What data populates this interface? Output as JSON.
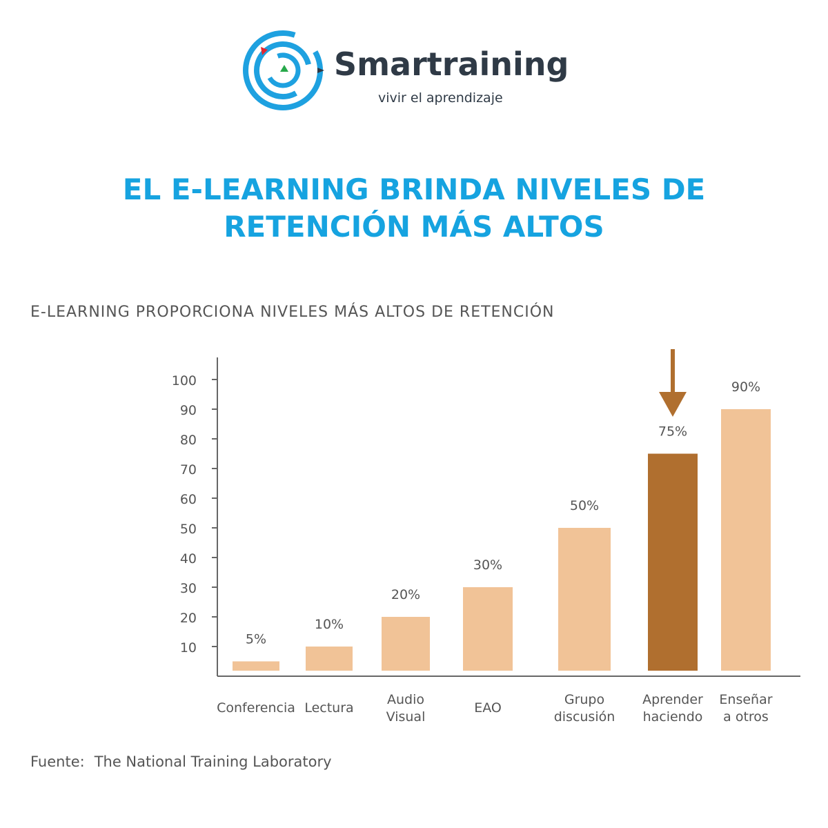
{
  "brand": {
    "name": "Smartraining",
    "tagline": "vivir el aprendizaje",
    "logo_icon": "target-maze-logo-icon",
    "colors": {
      "ring": "#1ea1e0",
      "red": "#e3262f",
      "green": "#27a84a",
      "text": "#2f3a46"
    }
  },
  "headline": {
    "line1": "EL E-LEARNING BRINDA NIVELES DE",
    "line2": "RETENCIÓN MÁS ALTOS",
    "color": "#16a3e0"
  },
  "source": {
    "label": "Fuente:",
    "text": "The National Training Laboratory"
  },
  "chart_data": {
    "type": "bar",
    "title": "E-LEARNING PROPORCIONA NIVELES MÁS ALTOS DE RETENCIÓN",
    "xlabel": "",
    "ylabel": "",
    "ylim": [
      0,
      100
    ],
    "yticks": [
      10,
      20,
      30,
      40,
      50,
      60,
      70,
      80,
      90,
      100
    ],
    "grid": false,
    "categories": [
      [
        "Conferencia"
      ],
      [
        "Lectura"
      ],
      [
        "Audio",
        "Visual"
      ],
      [
        "EAO"
      ],
      [
        "Grupo",
        "discusión"
      ],
      [
        "Aprender",
        "haciendo"
      ],
      [
        "Enseñar",
        "a otros"
      ]
    ],
    "values": [
      5,
      10,
      20,
      30,
      50,
      75,
      90
    ],
    "data_labels": [
      "5%",
      "10%",
      "20%",
      "30%",
      "50%",
      "75%",
      "90%"
    ],
    "highlight_index": 5,
    "highlight_annotation": "arrow-down-icon",
    "colors": {
      "bar": "#f1c397",
      "highlight": "#b06f2f",
      "axis": "#666666",
      "text": "#555555"
    }
  }
}
